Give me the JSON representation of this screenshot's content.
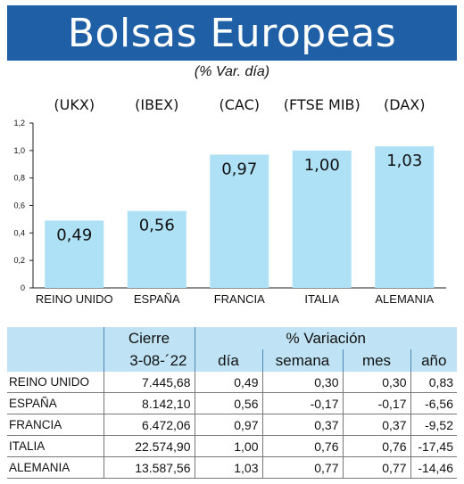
{
  "header": {
    "title": "Bolsas Europeas",
    "subtitle": "(% Var. día)"
  },
  "colors": {
    "banner": "#1f5fa6",
    "bar": "#aee1f6",
    "table_header": "#bfe3f4"
  },
  "chart_data": {
    "type": "bar",
    "categories": [
      "REINO UNIDO",
      "ESPAÑA",
      "FRANCIA",
      "ITALIA",
      "ALEMANIA"
    ],
    "index_labels": [
      "(UKX)",
      "(IBEX)",
      "(CAC)",
      "(FTSE MIB)",
      "(DAX)"
    ],
    "values": [
      0.49,
      0.56,
      0.97,
      1.0,
      1.03
    ],
    "value_labels": [
      "0,49",
      "0,56",
      "0,97",
      "1,00",
      "1,03"
    ],
    "yticks": [
      0,
      0.2,
      0.4,
      0.6,
      0.8,
      1.0,
      1.2
    ],
    "ytick_labels": [
      "0",
      "0,2",
      "0,4",
      "0,6",
      "0,8",
      "1,0",
      "1,2"
    ],
    "ylim": [
      0,
      1.2
    ],
    "grid": false,
    "legend": "none",
    "title": "",
    "xlabel": "",
    "ylabel": ""
  },
  "table": {
    "group_headers": [
      "Cierre",
      "% Variación"
    ],
    "sub_headers": [
      "3-08-´22",
      "día",
      "semana",
      "mes",
      "año"
    ],
    "rows": [
      [
        "REINO UNIDO",
        "7.445,68",
        "0,49",
        "0,30",
        "0,30",
        "0,83"
      ],
      [
        "ESPAÑA",
        "8.142,10",
        "0,56",
        "-0,17",
        "-0,17",
        "-6,56"
      ],
      [
        "FRANCIA",
        "6.472,06",
        "0,97",
        "0,37",
        "0,37",
        "-9,52"
      ],
      [
        "ITALIA",
        "22.574,90",
        "1,00",
        "0,76",
        "0,76",
        "-17,45"
      ],
      [
        "ALEMANIA",
        "13.587,56",
        "1,03",
        "0,77",
        "0,77",
        "-14,46"
      ]
    ]
  }
}
